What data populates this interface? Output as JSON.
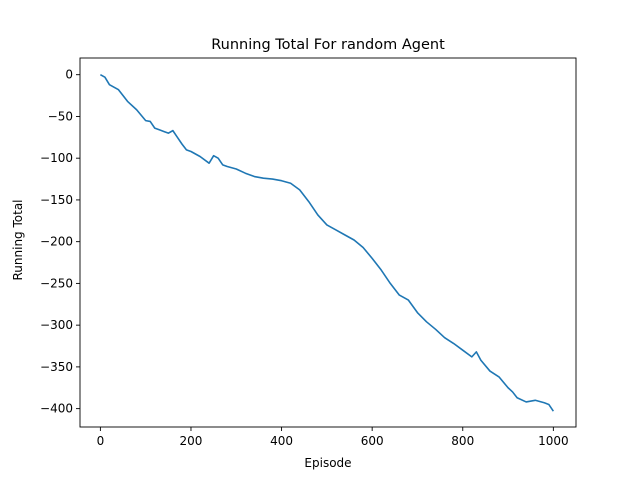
{
  "chart_data": {
    "type": "line",
    "title": "Running Total For random Agent",
    "xlabel": "Episode",
    "ylabel": "Running Total",
    "xlim": [
      -45,
      1050
    ],
    "ylim": [
      -422,
      20
    ],
    "xticks": [
      0,
      200,
      400,
      600,
      800,
      1000
    ],
    "yticks": [
      0,
      -50,
      -100,
      -150,
      -200,
      -250,
      -300,
      -350,
      -400
    ],
    "grid": false,
    "series": [
      {
        "color": "#1f77b4",
        "x": [
          0,
          10,
          20,
          40,
          60,
          80,
          100,
          110,
          120,
          130,
          140,
          150,
          160,
          170,
          180,
          190,
          200,
          220,
          240,
          250,
          260,
          270,
          280,
          300,
          320,
          340,
          360,
          380,
          400,
          420,
          440,
          460,
          480,
          500,
          520,
          540,
          560,
          580,
          600,
          620,
          640,
          660,
          680,
          700,
          720,
          740,
          760,
          780,
          800,
          820,
          830,
          840,
          860,
          880,
          900,
          910,
          920,
          940,
          960,
          980,
          990,
          1000
        ],
        "y": [
          0,
          -3,
          -12,
          -18,
          -32,
          -42,
          -55,
          -56,
          -64,
          -66,
          -68,
          -70,
          -67,
          -75,
          -83,
          -90,
          -92,
          -98,
          -106,
          -97,
          -100,
          -108,
          -110,
          -113,
          -118,
          -122,
          -124,
          -125,
          -127,
          -130,
          -138,
          -152,
          -168,
          -180,
          -186,
          -192,
          -198,
          -207,
          -220,
          -234,
          -250,
          -264,
          -270,
          -285,
          -296,
          -305,
          -315,
          -322,
          -330,
          -338,
          -332,
          -342,
          -355,
          -362,
          -375,
          -380,
          -387,
          -392,
          -390,
          -393,
          -395,
          -403
        ]
      }
    ]
  }
}
